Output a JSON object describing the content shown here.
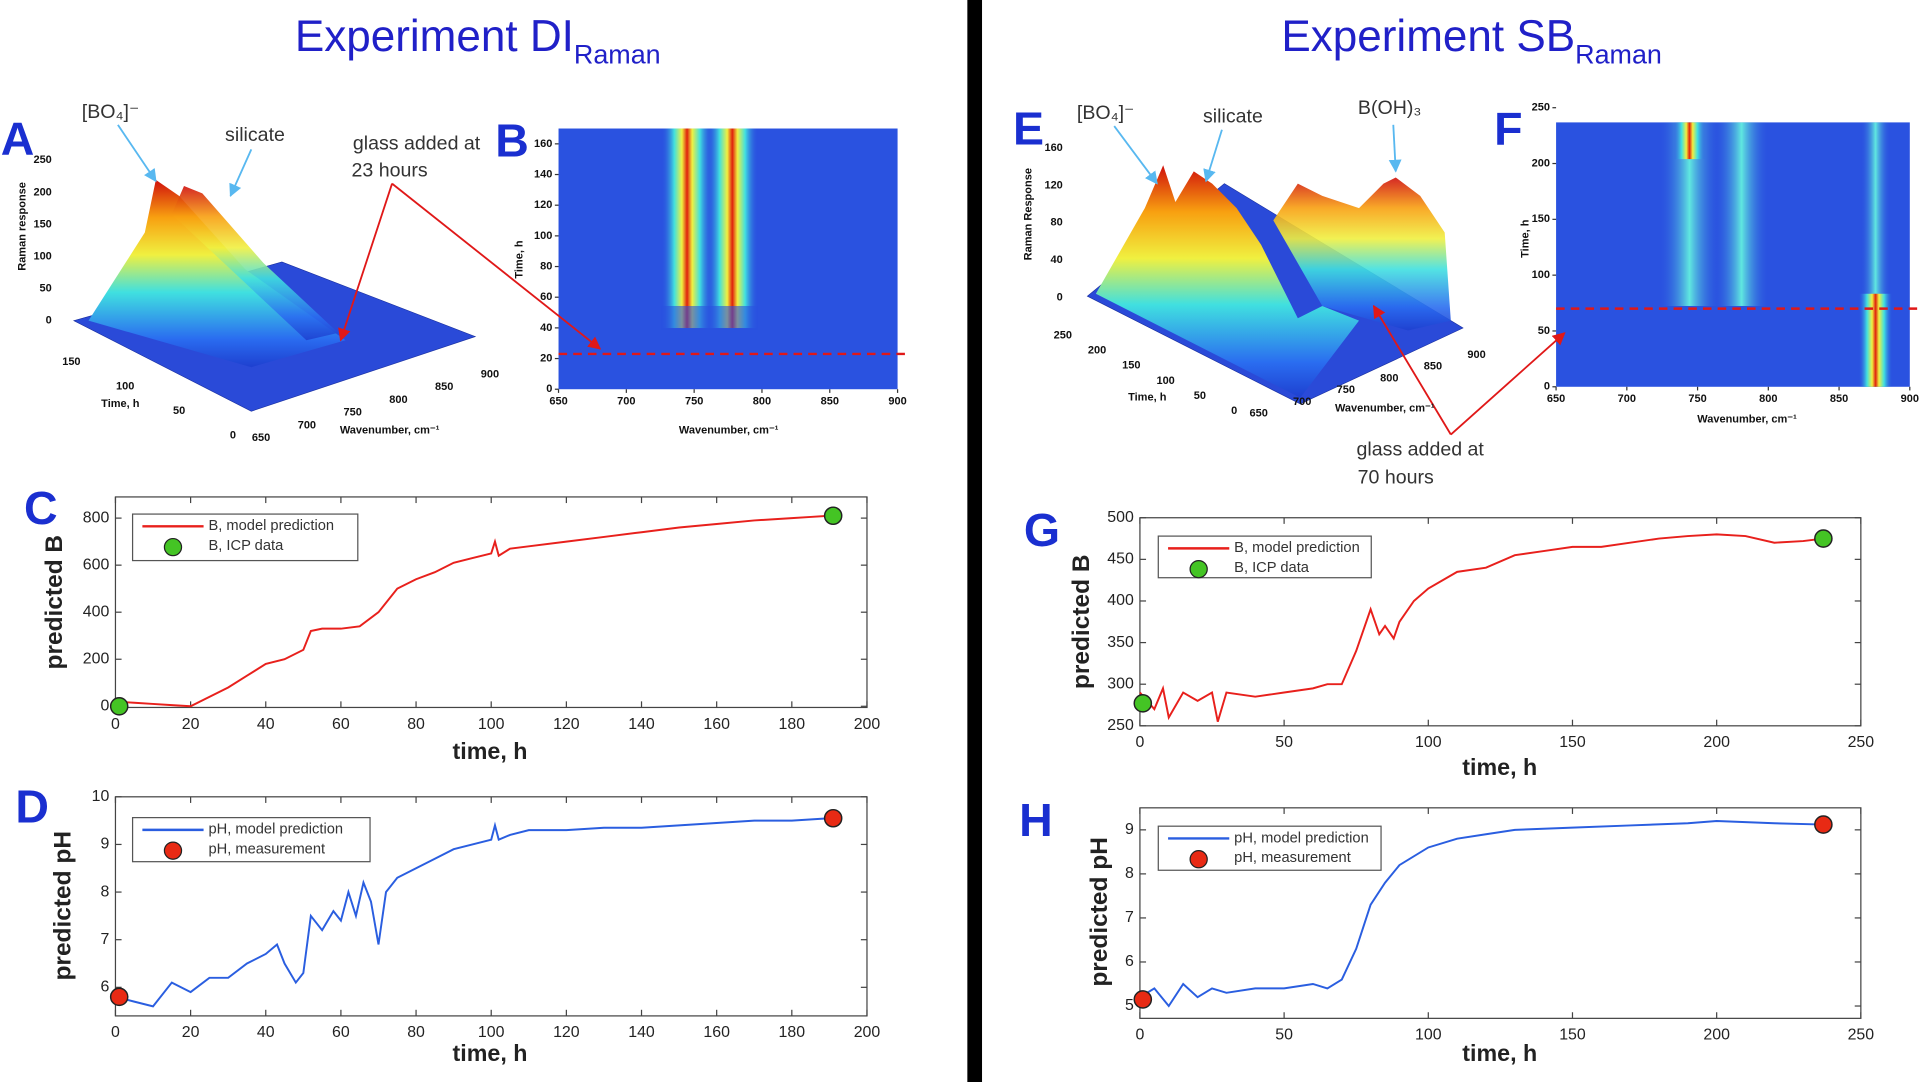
{
  "headings": [
    {
      "text": "Experiment DI",
      "subscript": "Raman"
    },
    {
      "text": "Experiment SB",
      "subscript": "Raman"
    }
  ],
  "chart_data": [
    {
      "type": "surface",
      "panel": "A",
      "zlabel": "Raman response",
      "zticks": [
        0,
        50,
        100,
        150,
        200,
        250
      ],
      "ylabel": "Time, h",
      "yticks": [
        150,
        100,
        50,
        0
      ],
      "xlabel": "Wavenumber, cm⁻¹",
      "xticks": [
        650,
        700,
        750,
        800,
        850,
        900
      ],
      "annotations": [
        "[BO₄]⁻",
        "silicate"
      ]
    },
    {
      "type": "heatmap",
      "panel": "B",
      "ylabel": "Time, h",
      "xlabel": "Wavenumber, cm⁻¹",
      "xlim": [
        650,
        900
      ],
      "xticks": [
        650,
        700,
        750,
        800,
        850,
        900
      ],
      "ylim": [
        0,
        170
      ],
      "yticks": [
        0,
        20,
        40,
        60,
        80,
        100,
        120,
        140,
        160
      ],
      "marker": {
        "value": 23,
        "label": [
          "glass added at",
          "23 hours"
        ]
      }
    },
    {
      "type": "line",
      "panel": "C",
      "ylabel": "predicted B",
      "xlabel": "time, h",
      "xlim": [
        0,
        200
      ],
      "xticks": [
        0,
        20,
        40,
        60,
        80,
        100,
        120,
        140,
        160,
        180,
        200
      ],
      "ylim": [
        -5,
        890
      ],
      "yticks": [
        0,
        200,
        400,
        600,
        800
      ],
      "series": [
        {
          "name": "B, model prediction",
          "color": "#e8201c",
          "style": "line",
          "x": [
            0,
            5,
            10,
            15,
            20,
            25,
            30,
            35,
            40,
            45,
            50,
            52,
            55,
            60,
            65,
            70,
            75,
            80,
            85,
            90,
            95,
            100,
            101,
            102,
            105,
            110,
            120,
            130,
            140,
            150,
            160,
            170,
            180,
            185,
            190
          ],
          "values": [
            20,
            15,
            10,
            5,
            0,
            40,
            80,
            130,
            180,
            200,
            240,
            320,
            330,
            330,
            340,
            400,
            500,
            540,
            570,
            610,
            630,
            650,
            700,
            640,
            670,
            680,
            700,
            720,
            740,
            760,
            775,
            790,
            800,
            805,
            810
          ]
        },
        {
          "name": "B, ICP data",
          "color": "#44c424",
          "style": "points",
          "x": [
            1,
            191
          ],
          "values": [
            0,
            810
          ]
        }
      ]
    },
    {
      "type": "line",
      "panel": "D",
      "ylabel": "predicted pH",
      "xlabel": "time, h",
      "xlim": [
        0,
        200
      ],
      "xticks": [
        0,
        20,
        40,
        60,
        80,
        100,
        120,
        140,
        160,
        180,
        200
      ],
      "ylim": [
        5.4,
        10
      ],
      "yticks": [
        6,
        7,
        8,
        9,
        10
      ],
      "series": [
        {
          "name": "pH, model prediction",
          "color": "#2a5ee0",
          "style": "line",
          "x": [
            0,
            5,
            10,
            15,
            20,
            25,
            30,
            35,
            40,
            43,
            45,
            48,
            50,
            52,
            55,
            58,
            60,
            62,
            64,
            66,
            68,
            70,
            72,
            75,
            80,
            85,
            90,
            95,
            100,
            101,
            102,
            105,
            110,
            120,
            130,
            140,
            150,
            160,
            170,
            180,
            190
          ],
          "values": [
            5.8,
            5.7,
            5.6,
            6.1,
            5.9,
            6.2,
            6.2,
            6.5,
            6.7,
            6.9,
            6.5,
            6.1,
            6.3,
            7.5,
            7.2,
            7.6,
            7.4,
            8.0,
            7.5,
            8.2,
            7.8,
            6.9,
            8.0,
            8.3,
            8.5,
            8.7,
            8.9,
            9.0,
            9.1,
            9.4,
            9.1,
            9.2,
            9.3,
            9.3,
            9.35,
            9.35,
            9.4,
            9.45,
            9.5,
            9.5,
            9.55
          ]
        },
        {
          "name": "pH, measurement",
          "color": "#e82a14",
          "style": "points",
          "x": [
            1,
            191
          ],
          "values": [
            5.8,
            9.55
          ]
        }
      ]
    },
    {
      "type": "surface",
      "panel": "E",
      "zlabel": "Raman Response",
      "zticks": [
        0,
        40,
        80,
        120,
        160
      ],
      "ylabel": "Time, h",
      "yticks": [
        250,
        200,
        150,
        100,
        50,
        0
      ],
      "xlabel": "Wavenumber, cm⁻¹",
      "xticks": [
        650,
        700,
        750,
        800,
        850,
        900
      ],
      "annotations": [
        "[BO₄]⁻",
        "silicate",
        "B(OH)₃"
      ]
    },
    {
      "type": "heatmap",
      "panel": "F",
      "ylabel": "Time, h",
      "xlabel": "Wavenumber, cm⁻¹",
      "xlim": [
        650,
        900
      ],
      "xticks": [
        650,
        700,
        750,
        800,
        850,
        900
      ],
      "ylim": [
        0,
        250
      ],
      "yticks": [
        0,
        50,
        100,
        150,
        200,
        250
      ],
      "marker": {
        "value": 70,
        "label": [
          "glass added at",
          "70 hours"
        ]
      }
    },
    {
      "type": "line",
      "panel": "G",
      "ylabel": "predicted B",
      "xlabel": "time, h",
      "xlim": [
        0,
        250
      ],
      "xticks": [
        0,
        50,
        100,
        150,
        200,
        250
      ],
      "ylim": [
        250,
        500
      ],
      "yticks": [
        250,
        300,
        350,
        400,
        450,
        500
      ],
      "series": [
        {
          "name": "B, model prediction",
          "color": "#e8201c",
          "style": "line",
          "x": [
            0,
            5,
            8,
            10,
            15,
            20,
            25,
            27,
            30,
            40,
            50,
            60,
            65,
            70,
            75,
            80,
            83,
            85,
            88,
            90,
            95,
            100,
            110,
            120,
            130,
            140,
            150,
            160,
            170,
            180,
            190,
            200,
            210,
            220,
            230,
            237
          ],
          "values": [
            290,
            270,
            295,
            260,
            290,
            280,
            290,
            255,
            290,
            285,
            290,
            295,
            300,
            300,
            340,
            390,
            360,
            370,
            355,
            375,
            400,
            415,
            435,
            440,
            455,
            460,
            465,
            465,
            470,
            475,
            478,
            480,
            478,
            470,
            472,
            475
          ]
        },
        {
          "name": "B, ICP data",
          "color": "#44c424",
          "style": "points",
          "x": [
            1,
            237
          ],
          "values": [
            277,
            475
          ]
        }
      ]
    },
    {
      "type": "line",
      "panel": "H",
      "ylabel": "predicted pH",
      "xlabel": "time, h",
      "xlim": [
        0,
        250
      ],
      "xticks": [
        0,
        50,
        100,
        150,
        200,
        250
      ],
      "ylim": [
        4.72,
        9.5
      ],
      "yticks": [
        5,
        6,
        7,
        8,
        9
      ],
      "series": [
        {
          "name": "pH, model prediction",
          "color": "#2a5ee0",
          "style": "line",
          "x": [
            0,
            5,
            10,
            15,
            20,
            25,
            30,
            40,
            50,
            60,
            65,
            70,
            75,
            80,
            85,
            90,
            100,
            110,
            120,
            130,
            150,
            170,
            190,
            200,
            220,
            237
          ],
          "values": [
            5.2,
            5.4,
            5.0,
            5.5,
            5.2,
            5.4,
            5.3,
            5.4,
            5.4,
            5.5,
            5.4,
            5.6,
            6.3,
            7.3,
            7.8,
            8.2,
            8.6,
            8.8,
            8.9,
            9.0,
            9.05,
            9.1,
            9.15,
            9.2,
            9.15,
            9.12
          ]
        },
        {
          "name": "pH, measurement",
          "color": "#e82a14",
          "style": "points",
          "x": [
            1,
            237
          ],
          "values": [
            5.15,
            9.12
          ]
        }
      ]
    }
  ]
}
